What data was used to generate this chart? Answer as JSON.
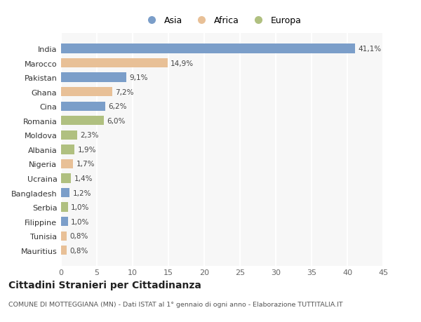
{
  "countries": [
    "India",
    "Marocco",
    "Pakistan",
    "Ghana",
    "Cina",
    "Romania",
    "Moldova",
    "Albania",
    "Nigeria",
    "Ucraina",
    "Bangladesh",
    "Serbia",
    "Filippine",
    "Tunisia",
    "Mauritius"
  ],
  "values": [
    41.1,
    14.9,
    9.1,
    7.2,
    6.2,
    6.0,
    2.3,
    1.9,
    1.7,
    1.4,
    1.2,
    1.0,
    1.0,
    0.8,
    0.8
  ],
  "labels": [
    "41,1%",
    "14,9%",
    "9,1%",
    "7,2%",
    "6,2%",
    "6,0%",
    "2,3%",
    "1,9%",
    "1,7%",
    "1,4%",
    "1,2%",
    "1,0%",
    "1,0%",
    "0,8%",
    "0,8%"
  ],
  "continents": [
    "Asia",
    "Africa",
    "Asia",
    "Africa",
    "Asia",
    "Europa",
    "Europa",
    "Europa",
    "Africa",
    "Europa",
    "Asia",
    "Europa",
    "Asia",
    "Africa",
    "Africa"
  ],
  "colors": {
    "Asia": "#7b9ec9",
    "Africa": "#e8c097",
    "Europa": "#b0c080"
  },
  "legend_labels": [
    "Asia",
    "Africa",
    "Europa"
  ],
  "title": "Cittadini Stranieri per Cittadinanza",
  "subtitle": "COMUNE DI MOTTEGGIANA (MN) - Dati ISTAT al 1° gennaio di ogni anno - Elaborazione TUTTITALIA.IT",
  "xlim": [
    0,
    45
  ],
  "xticks": [
    0,
    5,
    10,
    15,
    20,
    25,
    30,
    35,
    40,
    45
  ],
  "background_color": "#ffffff",
  "plot_bg_color": "#f7f7f7",
  "grid_color": "#ffffff"
}
